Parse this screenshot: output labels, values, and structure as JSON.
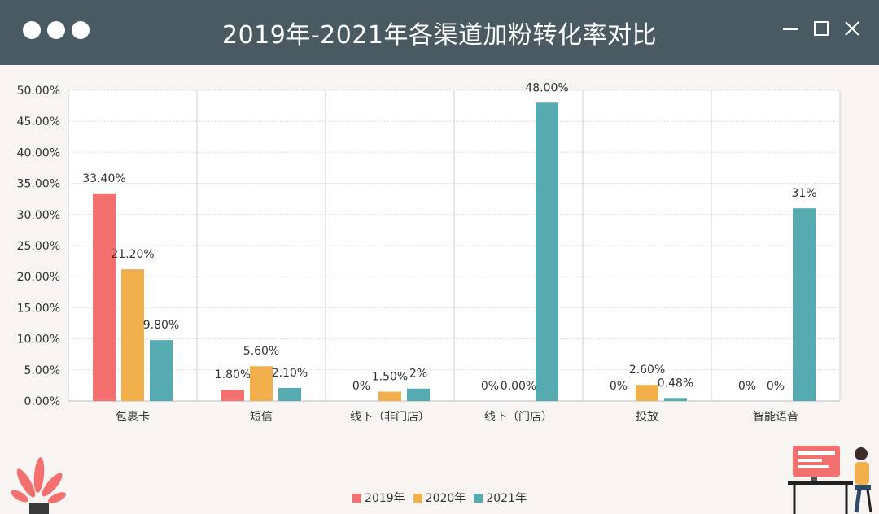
{
  "window": {
    "title": "2019年-2021年各渠道加粉转化率对比",
    "controls": {
      "minimize": "minimize-icon",
      "maximize": "maximize-icon",
      "close": "close-icon"
    }
  },
  "colors": {
    "titlebar": "#4a5a63",
    "s2019": "#f4706e",
    "s2020": "#f1b04c",
    "s2021": "#56abb0"
  },
  "chart_data": {
    "type": "bar",
    "title": "2019年-2021年各渠道加粉转化率对比",
    "categories": [
      "包裹卡",
      "短信",
      "线下（非门店）",
      "线下（门店）",
      "投放",
      "智能语音"
    ],
    "ylim": [
      0,
      50
    ],
    "yticks": [
      "0.00%",
      "5.00%",
      "10.00%",
      "15.00%",
      "20.00%",
      "25.00%",
      "30.00%",
      "35.00%",
      "40.00%",
      "45.00%",
      "50.00%"
    ],
    "grid": true,
    "legend_position": "bottom",
    "series": [
      {
        "name": "2019年",
        "color": "#f4706e",
        "values": [
          33.4,
          1.8,
          0,
          0,
          0,
          0
        ],
        "labels": [
          "33.40%",
          "1.80%",
          "0%",
          "0%",
          "0%",
          "0%"
        ]
      },
      {
        "name": "2020年",
        "color": "#f1b04c",
        "values": [
          21.2,
          5.6,
          1.5,
          0,
          2.6,
          0
        ],
        "labels": [
          "21.20%",
          "5.60%",
          "1.50%",
          "0.00%",
          "2.60%",
          "0%"
        ]
      },
      {
        "name": "2021年",
        "color": "#56abb0",
        "values": [
          9.8,
          2.1,
          2,
          48,
          0.48,
          31
        ],
        "labels": [
          "9.80%",
          "2.10%",
          "2%",
          "48.00%",
          "0.48%",
          "31%"
        ]
      }
    ]
  }
}
